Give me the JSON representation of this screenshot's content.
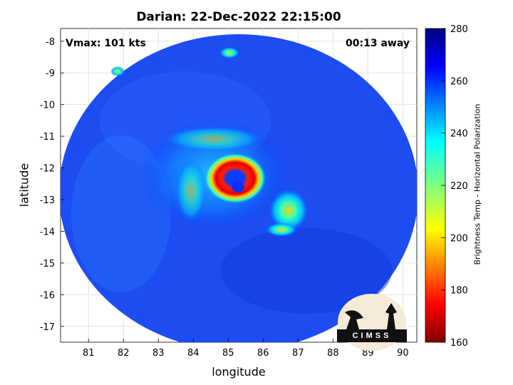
{
  "title": "Darian: 22-Dec-2022 22:15:00",
  "vmax_label": "Vmax: 101 kts",
  "time_label": "00:13 away",
  "logo_text": "CIMSS",
  "chart_data": {
    "type": "heatmap",
    "xlabel": "longitude",
    "ylabel": "latitude",
    "xlim": [
      80.2,
      90.4
    ],
    "ylim": [
      -17.5,
      -7.6
    ],
    "xticks": [
      81,
      82,
      83,
      84,
      85,
      86,
      87,
      88,
      89,
      90
    ],
    "yticks": [
      -8,
      -9,
      -10,
      -11,
      -12,
      -13,
      -14,
      -15,
      -16,
      -17
    ],
    "grid": true,
    "colorbar": {
      "label": "Brightness Temp - Horizontal Polarization",
      "range": [
        160,
        280
      ],
      "ticks": [
        160,
        180,
        200,
        220,
        240,
        260,
        280
      ],
      "colormap": "jet"
    },
    "scan_center": {
      "lon": 85.3,
      "lat": -12.4
    },
    "eye_center": {
      "lon": 85.3,
      "lat": -12.5
    },
    "background_value": 262
  }
}
